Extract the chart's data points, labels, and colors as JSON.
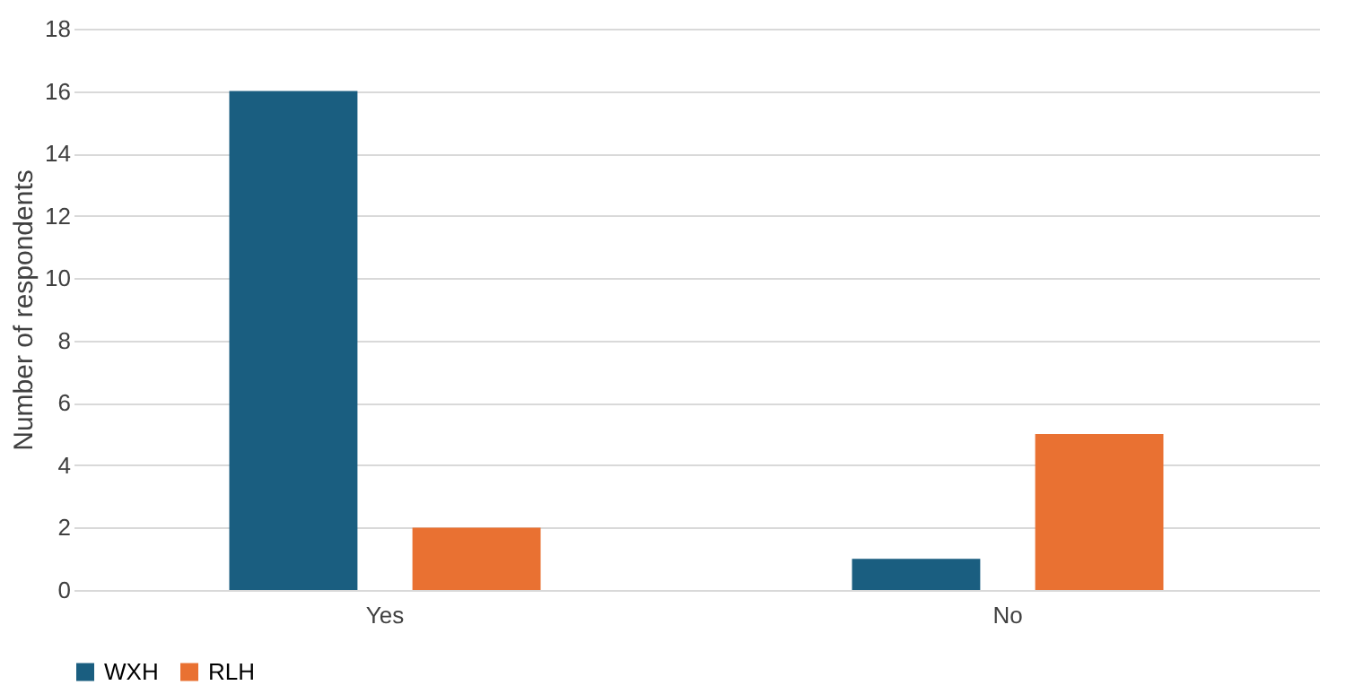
{
  "chart_data": {
    "type": "bar",
    "categories": [
      "Yes",
      "No"
    ],
    "ylabel": "Number of respondents",
    "series": [
      {
        "name": "WXH",
        "color": "#1a5e80",
        "values": [
          16,
          1
        ]
      },
      {
        "name": "RLH",
        "color": "#e97132",
        "values": [
          2,
          5
        ]
      }
    ],
    "ylim": [
      0,
      18
    ],
    "yticks": [
      0,
      2,
      4,
      6,
      8,
      10,
      12,
      14,
      16,
      18
    ],
    "grid": "y",
    "legend": "bottom"
  }
}
